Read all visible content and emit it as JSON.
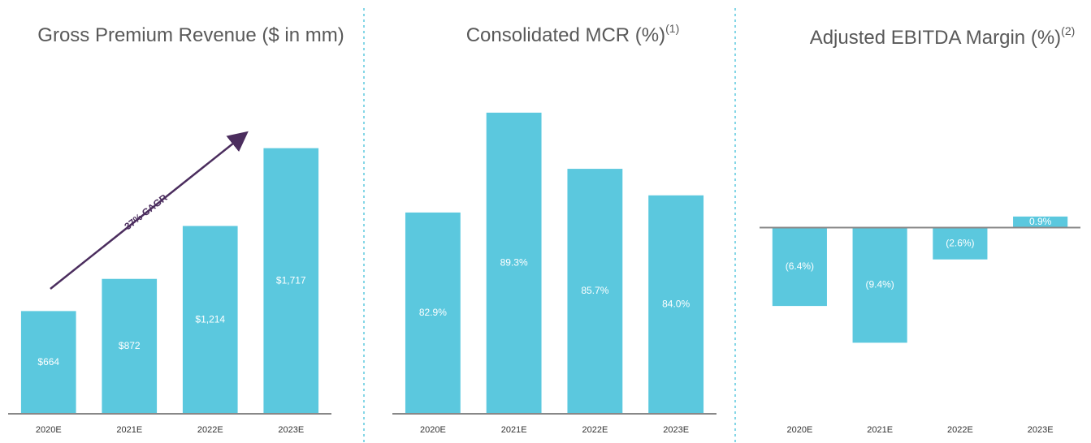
{
  "chart_data": [
    {
      "type": "bar",
      "title": "Gross Premium Revenue ($ in mm)",
      "categories": [
        "2020E",
        "2021E",
        "2022E",
        "2023E"
      ],
      "values": [
        664,
        872,
        1214,
        1717
      ],
      "value_labels": [
        "$664",
        "$872",
        "$1,214",
        "$1,717"
      ],
      "color": "#5bc8de",
      "ylim": [
        0,
        2360
      ],
      "annotation": "37% CAGR"
    },
    {
      "type": "bar",
      "title": "Consolidated MCR (%)",
      "footnote": "(1)",
      "categories": [
        "2020E",
        "2021E",
        "2022E",
        "2023E"
      ],
      "values": [
        82.9,
        89.3,
        85.7,
        84.0
      ],
      "value_labels": [
        "82.9%",
        "89.3%",
        "85.7%",
        "84.0%"
      ],
      "color": "#5bc8de",
      "ylim": [
        70,
        93.4
      ]
    },
    {
      "type": "bar",
      "title": "Adjusted EBITDA Margin (%)",
      "footnote": "(2)",
      "categories": [
        "2020E",
        "2021E",
        "2022E",
        "2023E"
      ],
      "values": [
        -6.4,
        -9.4,
        -2.6,
        0.9
      ],
      "value_labels": [
        "(6.4%)",
        "(9.4%)",
        "(2.6%)",
        "0.9%"
      ],
      "color": "#5bc8de",
      "ylim": [
        -15.2,
        14.6
      ]
    }
  ]
}
